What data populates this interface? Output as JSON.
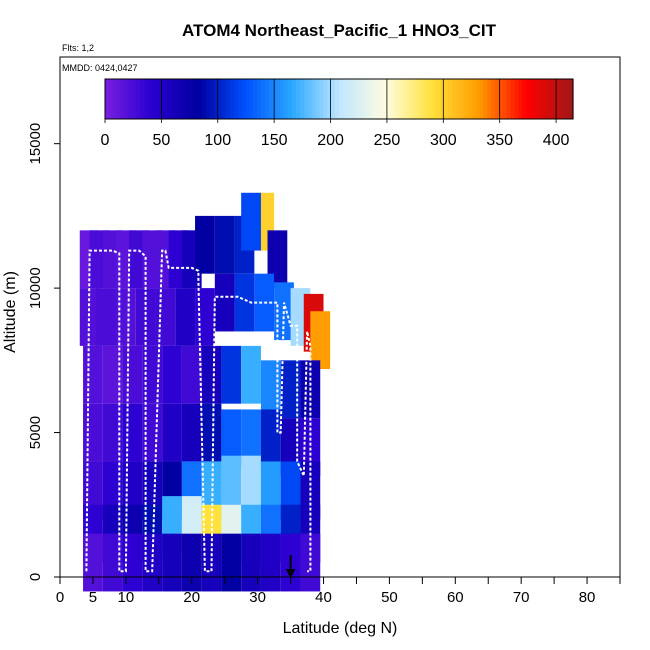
{
  "chart_data": {
    "type": "heatmap",
    "title": "ATOM4 Northeast_Pacific_1 HNO3_CIT",
    "flights_label": "Flts: 1,2",
    "dates_label": "MMDD: 0424,0427",
    "xlabel": "Latitude (deg N)",
    "ylabel": "Altitude (m)",
    "xlim": [
      0,
      85
    ],
    "ylim": [
      0,
      18000
    ],
    "x_ticks": [
      0,
      5,
      10,
      20,
      30,
      40,
      50,
      60,
      70,
      80
    ],
    "y_ticks": [
      0,
      5000,
      10000,
      15000
    ],
    "colorbar": {
      "min": 0,
      "max": 415,
      "ticks": [
        0,
        50,
        100,
        150,
        200,
        250,
        300,
        350,
        400
      ],
      "colors": [
        "#7a1fe0",
        "#2a00d0",
        "#0000a0",
        "#0050ff",
        "#2aa8ff",
        "#bfe6ff",
        "#fffce0",
        "#ffe13a",
        "#ff9a00",
        "#ff0000",
        "#a01818"
      ]
    },
    "cells": [
      {
        "lat": 4.5,
        "alt": 11000,
        "v": 10
      },
      {
        "lat": 6,
        "alt": 11000,
        "v": 25
      },
      {
        "lat": 8,
        "alt": 11000,
        "v": 20
      },
      {
        "lat": 10,
        "alt": 11000,
        "v": 15
      },
      {
        "lat": 12,
        "alt": 11000,
        "v": 30
      },
      {
        "lat": 14,
        "alt": 11000,
        "v": 20
      },
      {
        "lat": 16,
        "alt": 11000,
        "v": 20
      },
      {
        "lat": 18,
        "alt": 11000,
        "v": 40
      },
      {
        "lat": 20,
        "alt": 11000,
        "v": 60
      },
      {
        "lat": 22,
        "alt": 11500,
        "v": 80
      },
      {
        "lat": 25,
        "alt": 11500,
        "v": 90
      },
      {
        "lat": 28,
        "alt": 11500,
        "v": 100
      },
      {
        "lat": 31,
        "alt": 12300,
        "v": 300
      },
      {
        "lat": 29,
        "alt": 12300,
        "v": 120
      },
      {
        "lat": 33,
        "alt": 11000,
        "v": 70
      },
      {
        "lat": 4.5,
        "alt": 9000,
        "v": 20
      },
      {
        "lat": 7,
        "alt": 9000,
        "v": 25
      },
      {
        "lat": 10,
        "alt": 9000,
        "v": 20
      },
      {
        "lat": 13,
        "alt": 9000,
        "v": 30
      },
      {
        "lat": 16,
        "alt": 9000,
        "v": 30
      },
      {
        "lat": 19,
        "alt": 9000,
        "v": 50
      },
      {
        "lat": 22,
        "alt": 9000,
        "v": 40
      },
      {
        "lat": 25,
        "alt": 9500,
        "v": 60
      },
      {
        "lat": 28,
        "alt": 9500,
        "v": 110
      },
      {
        "lat": 31,
        "alt": 9500,
        "v": 130
      },
      {
        "lat": 34,
        "alt": 9200,
        "v": 140
      },
      {
        "lat": 36.5,
        "alt": 9000,
        "v": 200
      },
      {
        "lat": 38.5,
        "alt": 8800,
        "v": 390
      },
      {
        "lat": 39.5,
        "alt": 8200,
        "v": 330
      },
      {
        "lat": 5,
        "alt": 7000,
        "v": 20
      },
      {
        "lat": 8,
        "alt": 7000,
        "v": 15
      },
      {
        "lat": 11,
        "alt": 7000,
        "v": 25
      },
      {
        "lat": 14,
        "alt": 7000,
        "v": 30
      },
      {
        "lat": 17,
        "alt": 7000,
        "v": 40
      },
      {
        "lat": 20,
        "alt": 7000,
        "v": 30
      },
      {
        "lat": 23,
        "alt": 7000,
        "v": 60
      },
      {
        "lat": 26,
        "alt": 7000,
        "v": 110
      },
      {
        "lat": 29,
        "alt": 7000,
        "v": 170
      },
      {
        "lat": 32,
        "alt": 6500,
        "v": 150
      },
      {
        "lat": 35,
        "alt": 6500,
        "v": 100
      },
      {
        "lat": 38,
        "alt": 6500,
        "v": 70
      },
      {
        "lat": 5,
        "alt": 5000,
        "v": 25
      },
      {
        "lat": 8,
        "alt": 5000,
        "v": 30
      },
      {
        "lat": 11,
        "alt": 5000,
        "v": 40
      },
      {
        "lat": 14,
        "alt": 5000,
        "v": 30
      },
      {
        "lat": 17,
        "alt": 5000,
        "v": 50
      },
      {
        "lat": 20,
        "alt": 5000,
        "v": 60
      },
      {
        "lat": 23,
        "alt": 5000,
        "v": 90
      },
      {
        "lat": 26,
        "alt": 4800,
        "v": 130
      },
      {
        "lat": 29,
        "alt": 4800,
        "v": 140
      },
      {
        "lat": 32,
        "alt": 4800,
        "v": 100
      },
      {
        "lat": 35,
        "alt": 4500,
        "v": 60
      },
      {
        "lat": 38,
        "alt": 4500,
        "v": 40
      },
      {
        "lat": 5,
        "alt": 3000,
        "v": 30
      },
      {
        "lat": 8,
        "alt": 3000,
        "v": 40
      },
      {
        "lat": 11,
        "alt": 3000,
        "v": 50
      },
      {
        "lat": 14,
        "alt": 3000,
        "v": 60
      },
      {
        "lat": 17,
        "alt": 3000,
        "v": 80
      },
      {
        "lat": 20,
        "alt": 3000,
        "v": 140
      },
      {
        "lat": 23,
        "alt": 3000,
        "v": 170
      },
      {
        "lat": 26,
        "alt": 3200,
        "v": 180
      },
      {
        "lat": 29,
        "alt": 3200,
        "v": 200
      },
      {
        "lat": 32,
        "alt": 3000,
        "v": 160
      },
      {
        "lat": 35,
        "alt": 3000,
        "v": 120
      },
      {
        "lat": 38,
        "alt": 3000,
        "v": 60
      },
      {
        "lat": 5,
        "alt": 1500,
        "v": 40
      },
      {
        "lat": 8,
        "alt": 1500,
        "v": 60
      },
      {
        "lat": 11,
        "alt": 1500,
        "v": 70
      },
      {
        "lat": 14,
        "alt": 1500,
        "v": 90
      },
      {
        "lat": 17,
        "alt": 1800,
        "v": 170
      },
      {
        "lat": 20,
        "alt": 1800,
        "v": 220
      },
      {
        "lat": 23,
        "alt": 1500,
        "v": 290
      },
      {
        "lat": 26,
        "alt": 1500,
        "v": 230
      },
      {
        "lat": 29,
        "alt": 1500,
        "v": 170
      },
      {
        "lat": 32,
        "alt": 1500,
        "v": 140
      },
      {
        "lat": 35,
        "alt": 1500,
        "v": 100
      },
      {
        "lat": 38,
        "alt": 1500,
        "v": 60
      },
      {
        "lat": 5,
        "alt": 500,
        "v": 20
      },
      {
        "lat": 8,
        "alt": 500,
        "v": 30
      },
      {
        "lat": 11,
        "alt": 500,
        "v": 40
      },
      {
        "lat": 14,
        "alt": 500,
        "v": 50
      },
      {
        "lat": 17,
        "alt": 500,
        "v": 60
      },
      {
        "lat": 20,
        "alt": 500,
        "v": 70
      },
      {
        "lat": 23,
        "alt": 500,
        "v": 60
      },
      {
        "lat": 26,
        "alt": 500,
        "v": 80
      },
      {
        "lat": 29,
        "alt": 500,
        "v": 60
      },
      {
        "lat": 32,
        "alt": 500,
        "v": 50
      },
      {
        "lat": 35,
        "alt": 500,
        "v": 40
      },
      {
        "lat": 38,
        "alt": 500,
        "v": 30
      }
    ],
    "flight_track": [
      [
        4,
        200
      ],
      [
        4.5,
        11300
      ],
      [
        6,
        11300
      ],
      [
        8,
        11300
      ],
      [
        9,
        11200
      ],
      [
        9,
        200
      ],
      [
        10,
        200
      ],
      [
        10.5,
        11300
      ],
      [
        12,
        11300
      ],
      [
        13,
        11100
      ],
      [
        13,
        200
      ],
      [
        14,
        200
      ],
      [
        15.5,
        11300
      ],
      [
        16,
        11300
      ],
      [
        16.5,
        10700
      ],
      [
        20,
        10700
      ],
      [
        21,
        10600
      ],
      [
        21,
        10300
      ],
      [
        22,
        200
      ],
      [
        23,
        200
      ],
      [
        23.5,
        9700
      ],
      [
        24,
        9700
      ],
      [
        27,
        9700
      ],
      [
        28,
        9600
      ],
      [
        29,
        9500
      ],
      [
        33,
        9500
      ],
      [
        33,
        5000
      ],
      [
        33.5,
        5000
      ],
      [
        34,
        9500
      ],
      [
        35,
        8700
      ],
      [
        36,
        8700
      ],
      [
        36,
        4000
      ],
      [
        37,
        3500
      ],
      [
        37.5,
        8500
      ],
      [
        38,
        8000
      ],
      [
        38,
        200
      ],
      [
        37.5,
        200
      ]
    ],
    "arrow_lat": 35
  }
}
